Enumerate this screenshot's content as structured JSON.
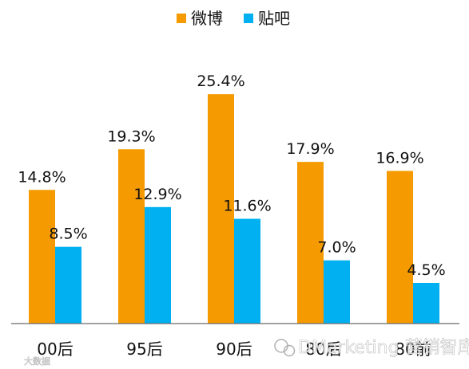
{
  "chart_data": {
    "type": "bar",
    "categories": [
      "00后",
      "95后",
      "90后",
      "80后",
      "80前"
    ],
    "series": [
      {
        "name": "微博",
        "values": [
          14.8,
          19.3,
          25.4,
          17.9,
          16.9
        ],
        "labels": [
          "14.8%",
          "19.3%",
          "25.4%",
          "17.9%",
          "16.9%"
        ],
        "color": "#f59a00"
      },
      {
        "name": "贴吧",
        "values": [
          8.5,
          12.9,
          11.6,
          7.0,
          4.5
        ],
        "labels": [
          "8.5%",
          "12.9%",
          "11.6%",
          "7.0%",
          "4.5%"
        ],
        "color": "#00b0f0"
      }
    ],
    "ylim": [
      0,
      27
    ],
    "grid": false,
    "legend": "top-center"
  },
  "watermark": {
    "left_text": "大数据",
    "right_text": "DMarketing 营销智库"
  }
}
